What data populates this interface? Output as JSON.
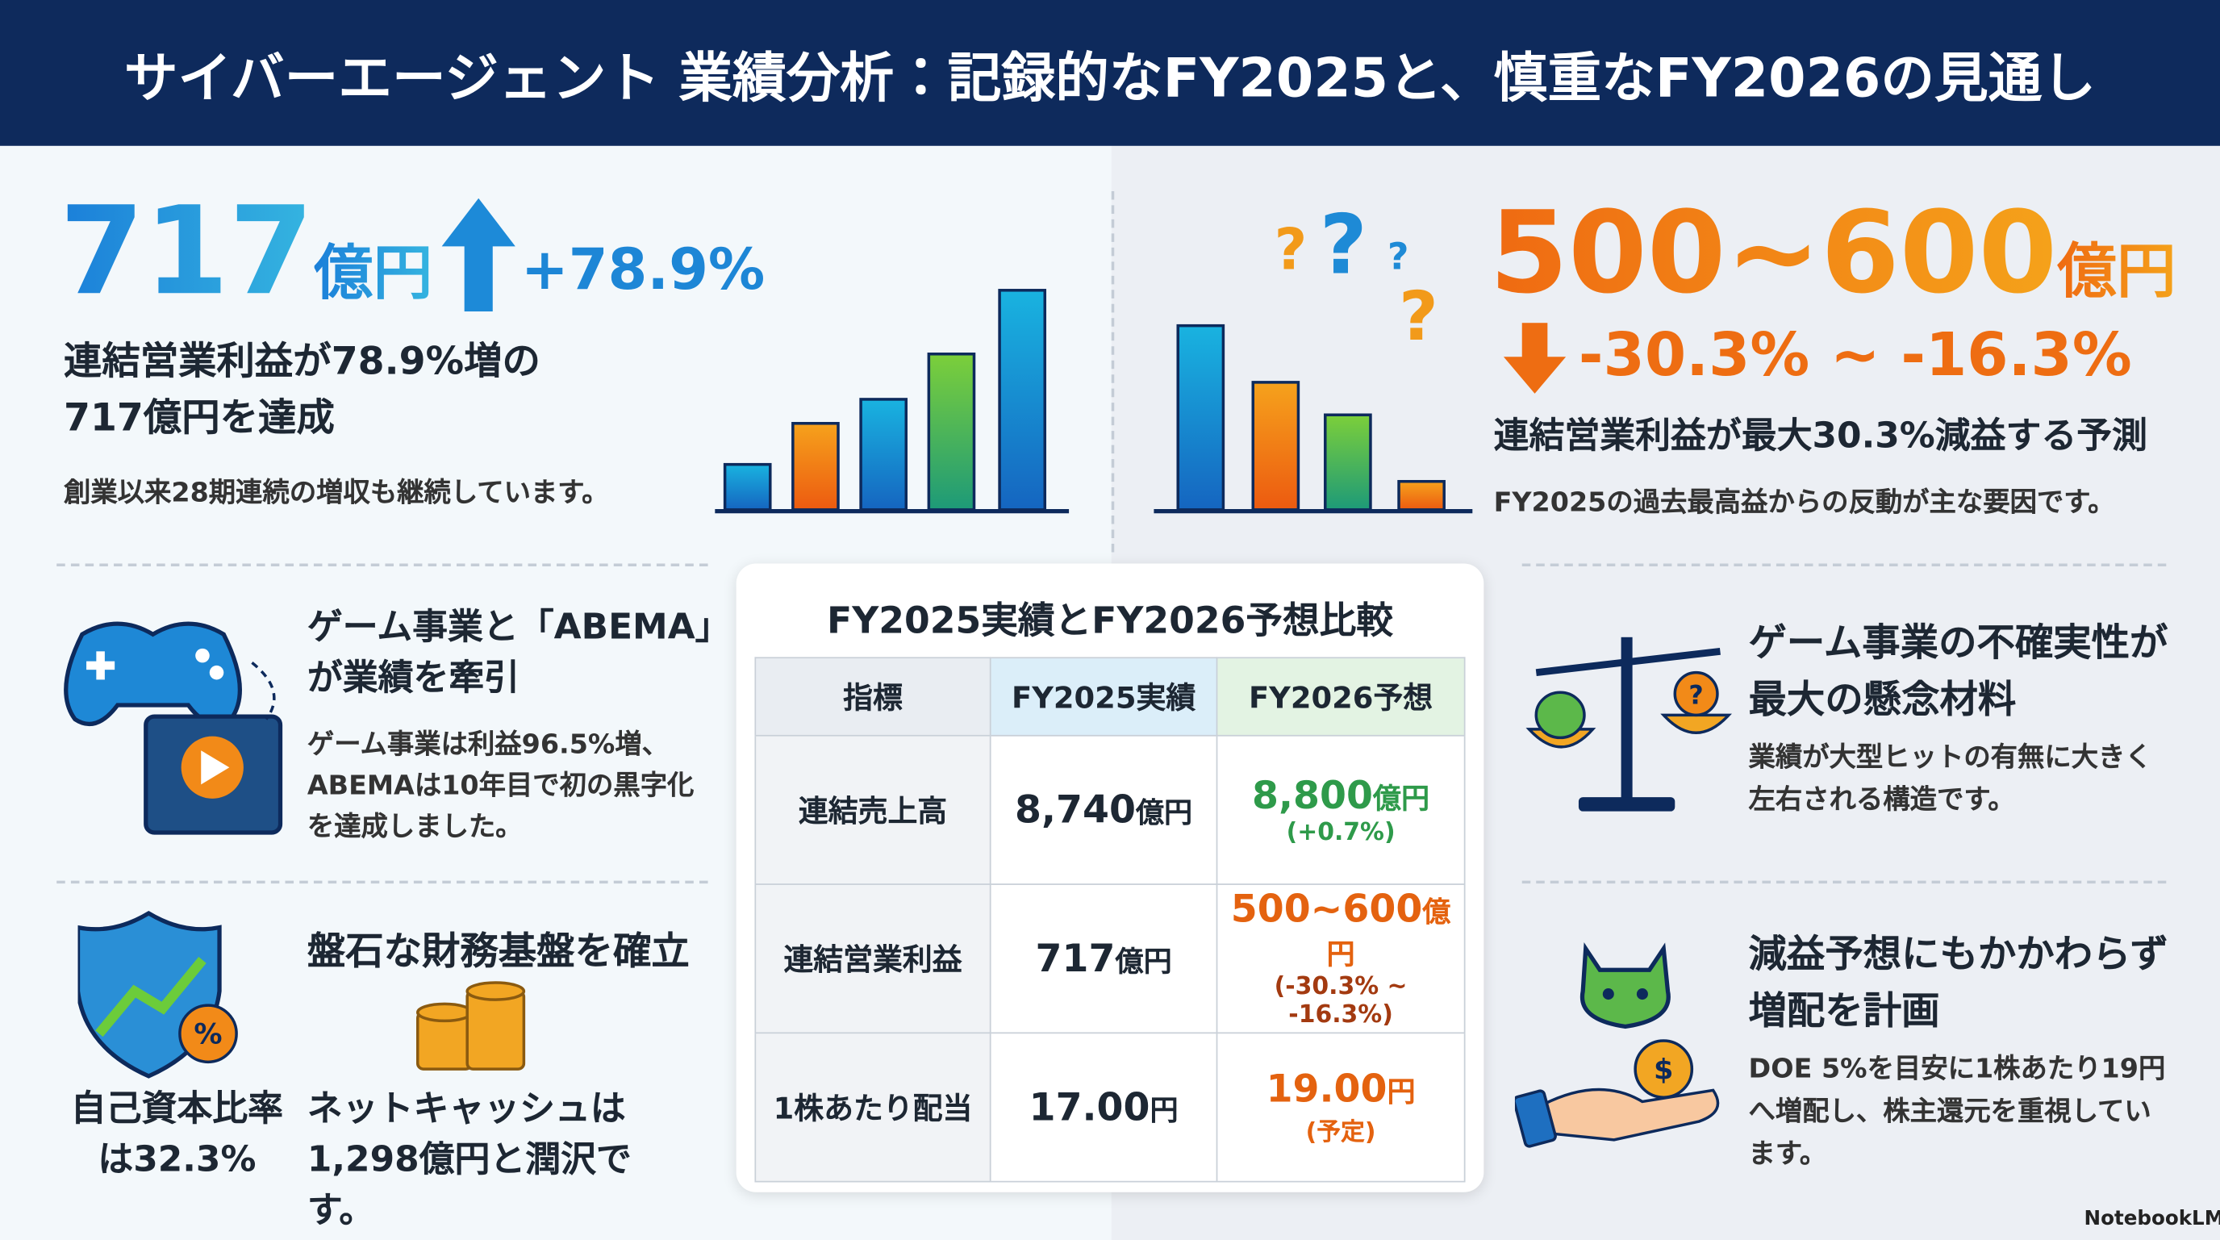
{
  "header": {
    "title": "サイバーエージェント 業績分析：記録的なFY2025と、慎重なFY2026の見通し"
  },
  "fy2025_hero": {
    "value": "717",
    "unit": "億円",
    "change": "+78.9%",
    "headline": "連結営業利益が78.9%増の717億円を達成",
    "note": "創業以来28期連続の増収も継続しています。"
  },
  "fy2026_hero": {
    "value": "500~600",
    "unit": "億円",
    "change": "-30.3% ~ -16.3%",
    "headline": "連結営業利益が最大30.3%減益する予測",
    "note": "FY2025の過去最高益からの反動が主な要因です。"
  },
  "left_cards": [
    {
      "title": "ゲーム事業と「ABEMA」が業績を牽引",
      "body": "ゲーム事業は利益96.5%増、ABEMAは10年目で初の黒字化を達成しました。"
    },
    {
      "title": "盤石な財務基盤を確立",
      "equity_ratio": "自己資本比率は32.3%",
      "net_cash": "ネットキャッシュは1,298億円と潤沢です。"
    }
  ],
  "right_cards": [
    {
      "title": "ゲーム事業の不確実性が最大の懸念材料",
      "body": "業績が大型ヒットの有無に大きく左右される構造です。"
    },
    {
      "title": "減益予想にもかかわらず増配を計画",
      "body": "DOE 5%を目安に1株あたり19円へ増配し、株主還元を重視しています。"
    }
  ],
  "table": {
    "title": "FY2025実績とFY2026予想比較",
    "headers": [
      "指標",
      "FY2025実績",
      "FY2026予想"
    ],
    "rows": [
      {
        "label": "連結売上高",
        "fy2025": {
          "value": "8,740",
          "unit": "億円"
        },
        "fy2026": {
          "value": "8,800",
          "unit": "億円",
          "note": "(+0.7%)"
        }
      },
      {
        "label": "連結営業利益",
        "fy2025": {
          "value": "717",
          "unit": "億円"
        },
        "fy2026": {
          "value": "500~600",
          "unit": "億円",
          "note": "(-30.3% ~ -16.3%)"
        }
      },
      {
        "label": "1株あたり配当",
        "fy2025": {
          "value": "17.00",
          "unit": "円"
        },
        "fy2026": {
          "value": "19.00",
          "unit": "円",
          "note": "(予定)"
        }
      }
    ]
  },
  "footer": {
    "brand": "NotebookLM"
  }
}
